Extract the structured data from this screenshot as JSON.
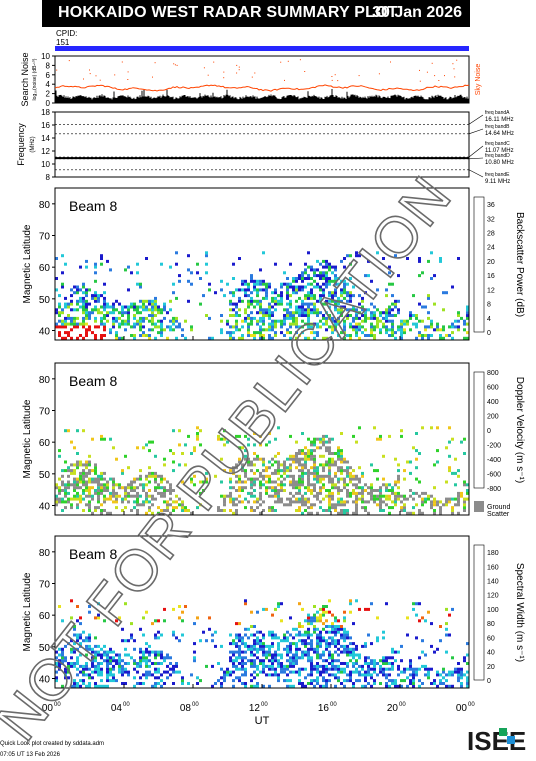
{
  "header": {
    "title": "HOKKAIDO WEST RADAR SUMMARY PLOT",
    "date": "30 Jan 2026"
  },
  "cpid": {
    "label": "CPID:",
    "value": "151"
  },
  "colors": {
    "beam_bar": "#2626ff",
    "noise_line": "#ff4400",
    "ground_scatter": "#8c8c8c"
  },
  "x_axis": {
    "label": "UT",
    "ticks": [
      "00",
      "04",
      "08",
      "12",
      "16",
      "20",
      "00"
    ],
    "tick_sup": "00"
  },
  "footer": {
    "line1": "Quick Look plot created by sddata.adm",
    "line2": "07:05 UT 13 Feb 2026",
    "logo_text": "ISEE"
  },
  "watermark": "NOT FOR PUBLICATION",
  "chart_data": [
    {
      "type": "area",
      "title": "",
      "ylabel": "Search Noise",
      "ylabel_sub": "log₁₀(noise) (dB-¹⁰)",
      "right_label": "Sky Noise",
      "ylim": [
        0,
        10
      ],
      "yticks": [
        "0",
        "2",
        "4",
        "6",
        "8",
        "10"
      ],
      "x": [
        0,
        4,
        8,
        12,
        16,
        20,
        24
      ],
      "series": [
        {
          "name": "Sky Noise",
          "values": [
            3.2,
            3.0,
            2.9,
            3.5,
            3.4,
            3.1,
            3.3
          ]
        },
        {
          "name": "Search Noise",
          "values": [
            1.2,
            1.1,
            1.0,
            1.3,
            1.2,
            1.1,
            1.2
          ]
        }
      ]
    },
    {
      "type": "line",
      "ylabel": "Frequency",
      "ylabel_sub": "(MHz)",
      "ylim": [
        8,
        18
      ],
      "yticks": [
        "8",
        "10",
        "12",
        "14",
        "16",
        "18"
      ],
      "x": [
        0,
        24
      ],
      "series": [
        {
          "name": "",
          "values": [
            10.9,
            10.9
          ]
        }
      ],
      "freq_bands": [
        {
          "band": "freq bandA",
          "value": "16.11 MHz"
        },
        {
          "band": "freq bandB",
          "value": "14.64 MHz"
        },
        {
          "band": "freq bandC",
          "value": "11.07 MHz"
        },
        {
          "band": "freq bandD",
          "value": "10.80 MHz"
        },
        {
          "band": "freq bandE",
          "value": "9.11 MHz"
        }
      ]
    },
    {
      "type": "heatmap",
      "beam_label": "Beam  8",
      "ylabel": "Magnetic Latitude",
      "ylim": [
        37,
        85
      ],
      "yticks": [
        "40",
        "50",
        "60",
        "70",
        "80"
      ],
      "colorbar_label": "Backscatter Power (dB)",
      "colorbar_ticks": [
        "0",
        "4",
        "8",
        "12",
        "16",
        "20",
        "24",
        "28",
        "32",
        "36"
      ],
      "colorbar_colors": [
        "#1a1acc",
        "#2a7adf",
        "#22c8d8",
        "#26c844",
        "#9ee222",
        "#e8e31e",
        "#f4a416",
        "#f06410",
        "#e61010"
      ],
      "x_range": [
        0,
        24
      ]
    },
    {
      "type": "heatmap",
      "beam_label": "Beam  8",
      "ylabel": "Magnetic Latitude",
      "ylim": [
        37,
        85
      ],
      "yticks": [
        "40",
        "50",
        "60",
        "70",
        "80"
      ],
      "colorbar_label": "Doppler Velocity (m s⁻¹)",
      "colorbar_ticks": [
        "800",
        "600",
        "400",
        "200",
        "0",
        "-200",
        "-400",
        "-600",
        "-800"
      ],
      "colorbar_colors": [
        "#1a1acc",
        "#1e63d4",
        "#25a6dc",
        "#26c8a0",
        "#2fd22a",
        "#c8e020",
        "#f0c61a",
        "#f08a12",
        "#e62010"
      ],
      "ground_scatter_label": "Ground Scatter",
      "x_range": [
        0,
        24
      ]
    },
    {
      "type": "heatmap",
      "beam_label": "Beam  8",
      "ylabel": "Magnetic Latitude",
      "ylim": [
        37,
        85
      ],
      "yticks": [
        "40",
        "50",
        "60",
        "70",
        "80"
      ],
      "colorbar_label": "Spectral Width (m s⁻¹)",
      "colorbar_ticks": [
        "0",
        "20",
        "40",
        "60",
        "80",
        "100",
        "120",
        "140",
        "160",
        "180"
      ],
      "colorbar_colors": [
        "#1a1acc",
        "#2a7adf",
        "#22c8d8",
        "#26c844",
        "#9ee222",
        "#e8e31e",
        "#f4a416",
        "#f06410",
        "#e61010"
      ],
      "x_range": [
        0,
        24
      ]
    }
  ]
}
